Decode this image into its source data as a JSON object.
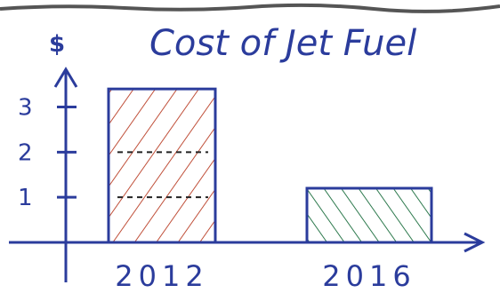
{
  "chart_data": {
    "type": "bar",
    "title": "Cost of Jet Fuel",
    "ylabel": "$",
    "xlabel": "",
    "categories": [
      "2012",
      "2016"
    ],
    "values": [
      3.4,
      1.2
    ],
    "ylim": [
      0,
      3.6
    ],
    "yticks": [
      "1",
      "2",
      "3"
    ],
    "grid": false,
    "colors": {
      "ink": "#2b3c9c",
      "bar_2012_hatch": "#c0503a",
      "bar_2016_hatch": "#2e7a4e",
      "top_border": "#555555"
    },
    "annotations": "dashed lines inside 2012 bar at 1 and 2"
  }
}
